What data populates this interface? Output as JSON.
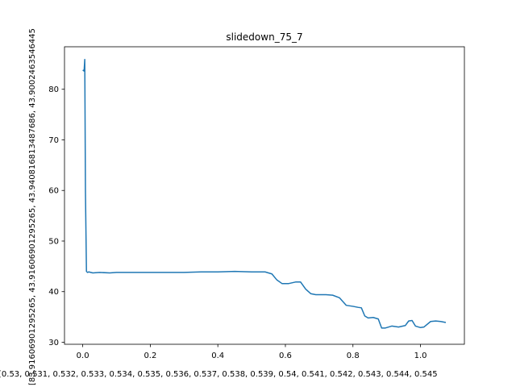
{
  "chart_data": {
    "type": "line",
    "title": "slidedown_75_7",
    "xlabel": "[0.53, 0.531, 0.532, 0.533, 0.534, 0.535, 0.536, 0.537, 0.538, 0.539, 0.54, 0.541, 0.542, 0.543, 0.544, 0.545",
    "ylabel": "[83.91606901295265, 43.91606901295265, 43.940816813487686, 43.9002463546445",
    "xlim": [
      -0.054,
      1.13
    ],
    "ylim": [
      29.6,
      88.4
    ],
    "xticks": [
      0.0,
      0.2,
      0.4,
      0.6,
      0.8,
      1.0
    ],
    "xtick_labels": [
      "0.0",
      "0.2",
      "0.4",
      "0.6",
      "0.8",
      "1.0"
    ],
    "yticks": [
      30,
      40,
      50,
      60,
      70,
      80
    ],
    "ytick_labels": [
      "30",
      "40",
      "50",
      "60",
      "70",
      "80"
    ],
    "grid": false,
    "line_color": "#1f77b4",
    "series": [
      {
        "x": [
          0.0,
          0.004,
          0.006,
          0.008,
          0.011,
          0.014,
          0.018,
          0.03,
          0.05,
          0.08,
          0.1,
          0.15,
          0.2,
          0.25,
          0.3,
          0.35,
          0.4,
          0.45,
          0.5,
          0.54,
          0.56,
          0.575,
          0.59,
          0.61,
          0.63,
          0.645,
          0.66,
          0.675,
          0.69,
          0.72,
          0.74,
          0.76,
          0.78,
          0.8,
          0.815,
          0.825,
          0.835,
          0.845,
          0.86,
          0.875,
          0.885,
          0.895,
          0.915,
          0.935,
          0.955,
          0.965,
          0.975,
          0.985,
          1.0,
          1.01,
          1.03,
          1.045,
          1.06,
          1.075
        ],
        "y": [
          83.8,
          83.6,
          85.9,
          60.0,
          44.0,
          43.8,
          43.9,
          43.7,
          43.8,
          43.7,
          43.8,
          43.8,
          43.8,
          43.8,
          43.8,
          43.9,
          43.9,
          44.0,
          43.9,
          43.9,
          43.5,
          42.3,
          41.6,
          41.6,
          41.9,
          41.9,
          40.5,
          39.6,
          39.4,
          39.4,
          39.3,
          38.8,
          37.3,
          37.1,
          36.9,
          36.8,
          35.2,
          34.8,
          34.9,
          34.6,
          32.8,
          32.8,
          33.2,
          33.0,
          33.3,
          34.2,
          34.3,
          33.2,
          32.9,
          33.0,
          34.1,
          34.2,
          34.1,
          33.9
        ]
      }
    ]
  }
}
